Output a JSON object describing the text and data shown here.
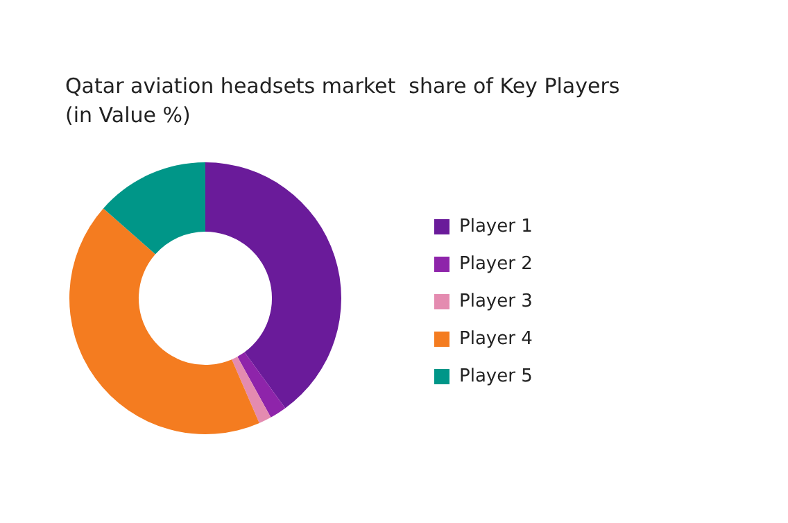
{
  "chart_data": {
    "type": "donut",
    "title": "Qatar aviation headsets market  share of Key Players\n(in Value %)",
    "categories": [
      "Player 1",
      "Player 2",
      "Player 3",
      "Player 4",
      "Player 5"
    ],
    "values": [
      40,
      2,
      1.5,
      43,
      13.5
    ],
    "colors": [
      "#6a1b9a",
      "#8e24aa",
      "#e48bb0",
      "#f47c20",
      "#009688"
    ],
    "legend": "right"
  }
}
